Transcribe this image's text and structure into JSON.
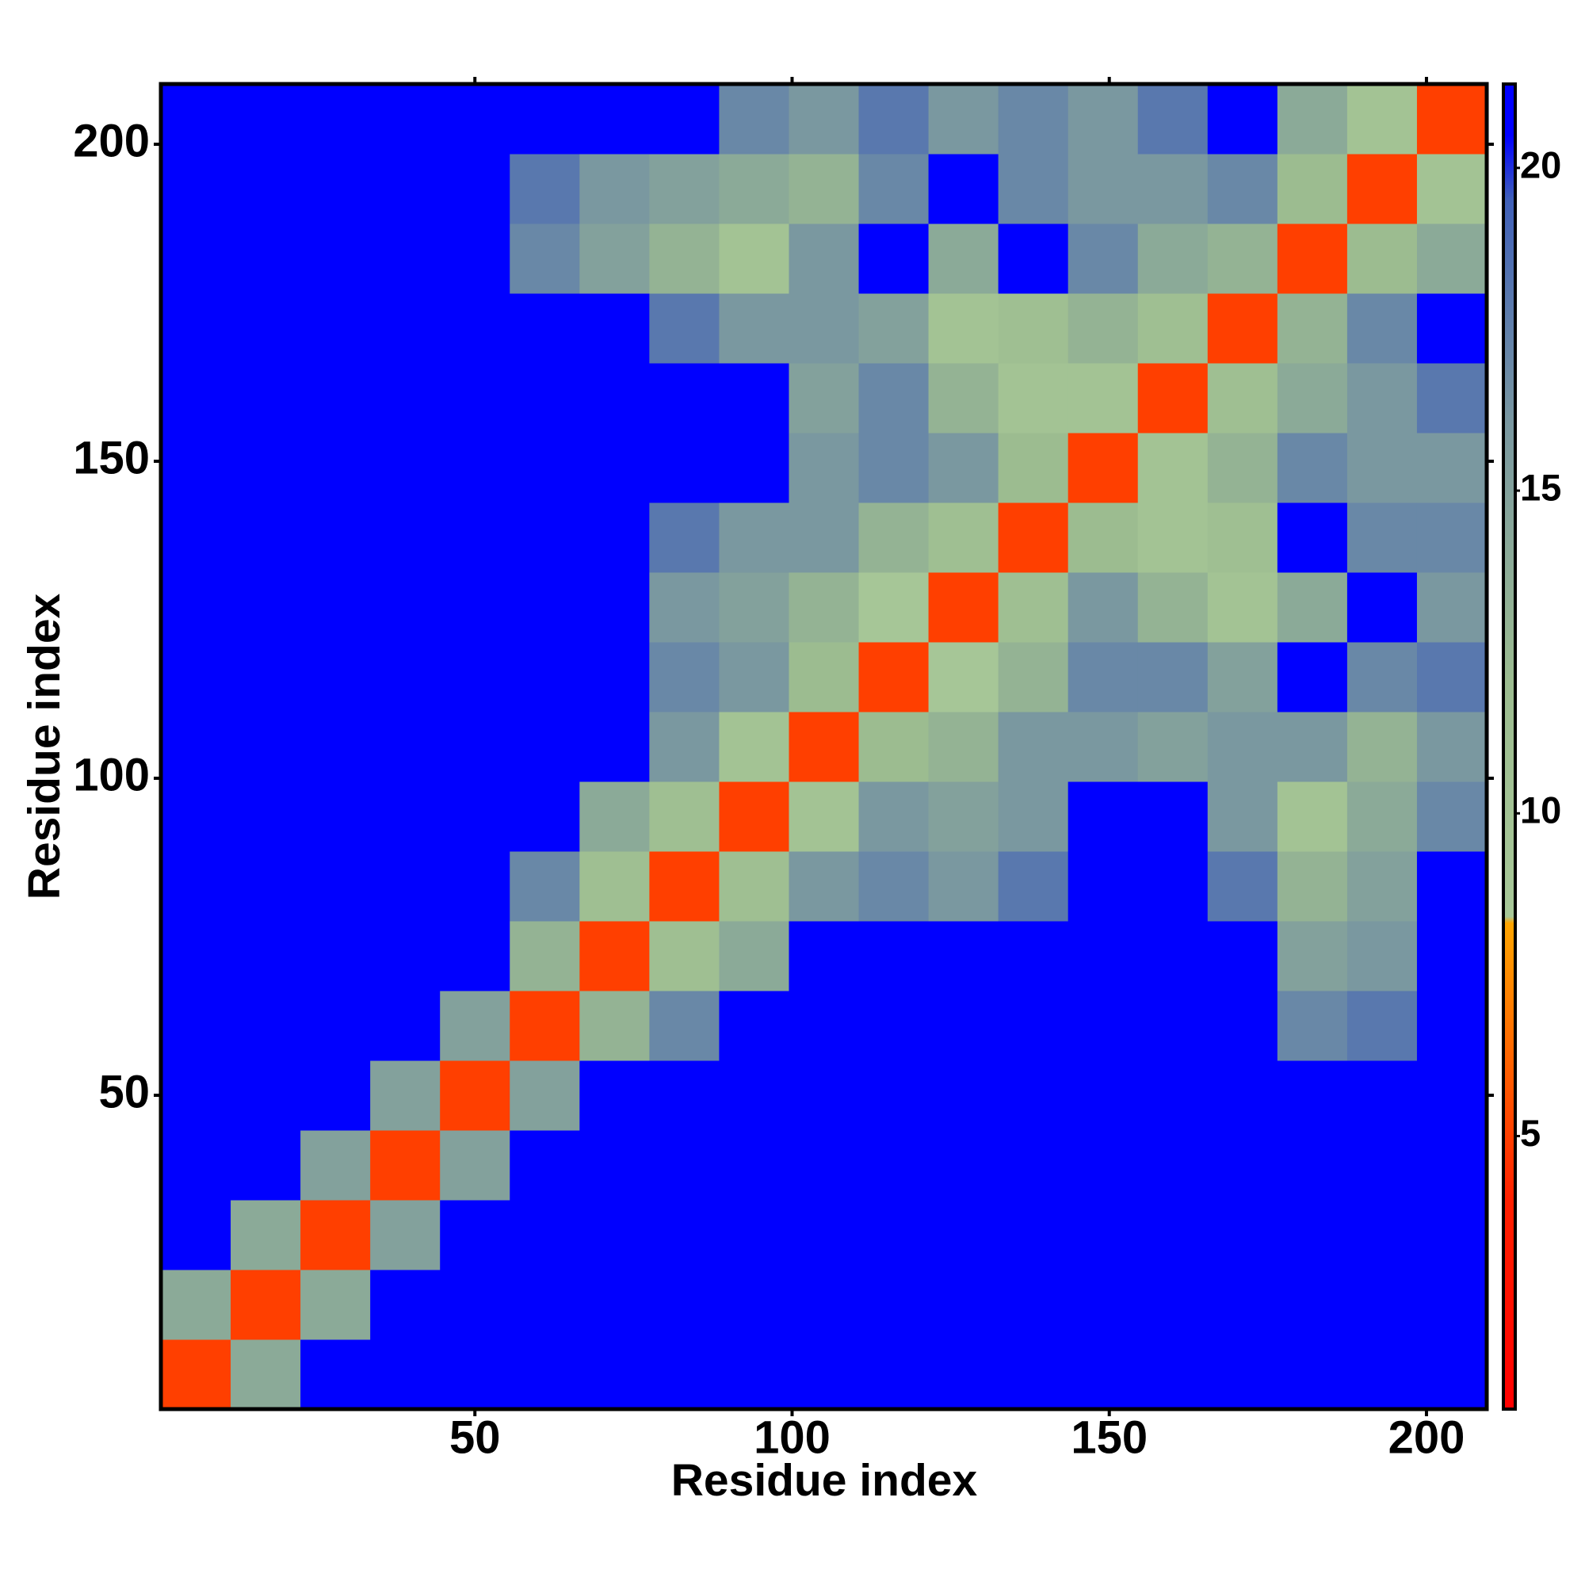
{
  "chart_data": {
    "type": "heatmap",
    "xlabel": "Residue index",
    "ylabel": "Residue index",
    "xbins": [
      0.5,
      11.5,
      22.5,
      33.5,
      44.5,
      55.5,
      66.5,
      77.5,
      88.5,
      99.5,
      110.5,
      121.5,
      132.5,
      143.5,
      154.5,
      165.5,
      176.5,
      187.5,
      198.5,
      209.5
    ],
    "ybins": [
      0.5,
      11.5,
      22.5,
      33.5,
      44.5,
      55.5,
      66.5,
      77.5,
      88.5,
      99.5,
      110.5,
      121.5,
      132.5,
      143.5,
      154.5,
      165.5,
      176.5,
      187.5,
      198.5,
      209.5
    ],
    "z": [
      [
        5,
        14,
        21,
        21,
        21,
        21,
        21,
        21,
        21,
        21,
        21,
        21,
        21,
        21,
        21,
        21,
        21,
        21,
        21
      ],
      [
        14,
        5,
        14,
        21,
        21,
        21,
        21,
        21,
        21,
        21,
        21,
        21,
        21,
        21,
        21,
        21,
        21,
        21,
        21
      ],
      [
        21,
        14,
        5,
        15,
        21,
        21,
        21,
        21,
        21,
        21,
        21,
        21,
        21,
        21,
        21,
        21,
        21,
        21,
        21
      ],
      [
        21,
        21,
        15,
        5,
        15,
        21,
        21,
        21,
        21,
        21,
        21,
        21,
        21,
        21,
        21,
        21,
        21,
        21,
        21
      ],
      [
        21,
        21,
        21,
        15,
        5,
        15,
        21,
        21,
        21,
        21,
        21,
        21,
        21,
        21,
        21,
        21,
        21,
        21,
        21
      ],
      [
        21,
        21,
        21,
        21,
        15,
        5,
        13,
        17,
        21,
        21,
        21,
        21,
        21,
        21,
        21,
        21,
        17,
        18,
        21
      ],
      [
        21,
        21,
        21,
        21,
        21,
        13,
        5,
        11,
        14,
        21,
        21,
        21,
        21,
        21,
        21,
        21,
        15,
        16,
        21
      ],
      [
        21,
        21,
        21,
        21,
        21,
        17,
        11,
        5,
        11,
        16,
        17,
        16,
        18,
        21,
        21,
        18,
        13,
        15,
        21
      ],
      [
        21,
        21,
        21,
        21,
        21,
        21,
        14,
        11,
        5,
        10,
        16,
        15,
        16,
        21,
        21,
        16,
        10,
        14,
        17
      ],
      [
        21,
        21,
        21,
        21,
        21,
        21,
        21,
        16,
        10,
        5,
        12,
        13,
        16,
        16,
        15,
        16,
        16,
        13,
        16
      ],
      [
        21,
        21,
        21,
        21,
        21,
        21,
        21,
        17,
        16,
        12,
        5,
        9,
        13,
        17,
        17,
        15,
        21,
        17,
        18
      ],
      [
        21,
        21,
        21,
        21,
        21,
        21,
        21,
        16,
        15,
        13,
        9,
        5,
        11,
        16,
        13,
        10,
        14,
        21,
        16
      ],
      [
        21,
        21,
        21,
        21,
        21,
        21,
        21,
        18,
        16,
        16,
        13,
        11,
        5,
        12,
        10,
        11,
        21,
        17,
        17
      ],
      [
        21,
        21,
        21,
        21,
        21,
        21,
        21,
        21,
        21,
        16,
        17,
        16,
        12,
        5,
        10,
        13,
        17,
        16,
        16
      ],
      [
        21,
        21,
        21,
        21,
        21,
        21,
        21,
        21,
        21,
        15,
        17,
        13,
        10,
        10,
        5,
        11,
        14,
        16,
        18
      ],
      [
        21,
        21,
        21,
        21,
        21,
        21,
        21,
        18,
        16,
        16,
        15,
        10,
        11,
        13,
        11,
        5,
        13,
        17,
        21
      ],
      [
        21,
        21,
        21,
        21,
        21,
        17,
        15,
        13,
        10,
        16,
        21,
        14,
        21,
        17,
        14,
        13,
        5,
        12,
        14
      ],
      [
        21,
        21,
        21,
        21,
        21,
        18,
        16,
        15,
        14,
        13,
        17,
        21,
        17,
        16,
        16,
        17,
        12,
        5,
        10
      ],
      [
        21,
        21,
        21,
        21,
        21,
        21,
        21,
        21,
        17,
        16,
        18,
        16,
        17,
        16,
        18,
        21,
        14,
        10,
        5
      ]
    ],
    "xlim": [
      0.5,
      209.5
    ],
    "ylim": [
      0.5,
      209.5
    ],
    "xticks": [
      50,
      100,
      150,
      200
    ],
    "yticks": [
      50,
      100,
      150,
      200
    ],
    "clim": [
      0.77,
      21.3
    ],
    "cticks": [
      5,
      10,
      15,
      20
    ],
    "colorscale": [
      [
        0.77,
        "#ff0000"
      ],
      [
        4,
        "#ff2000"
      ],
      [
        7.5,
        "#ff8c00"
      ],
      [
        8.3,
        "#ffa500"
      ],
      [
        8.4,
        "#a8c898"
      ],
      [
        12,
        "#9cbc90"
      ],
      [
        16,
        "#7a98a0"
      ],
      [
        19.5,
        "#4060b8"
      ],
      [
        20.5,
        "#0000ff"
      ],
      [
        21.3,
        "#0000ff"
      ]
    ]
  }
}
